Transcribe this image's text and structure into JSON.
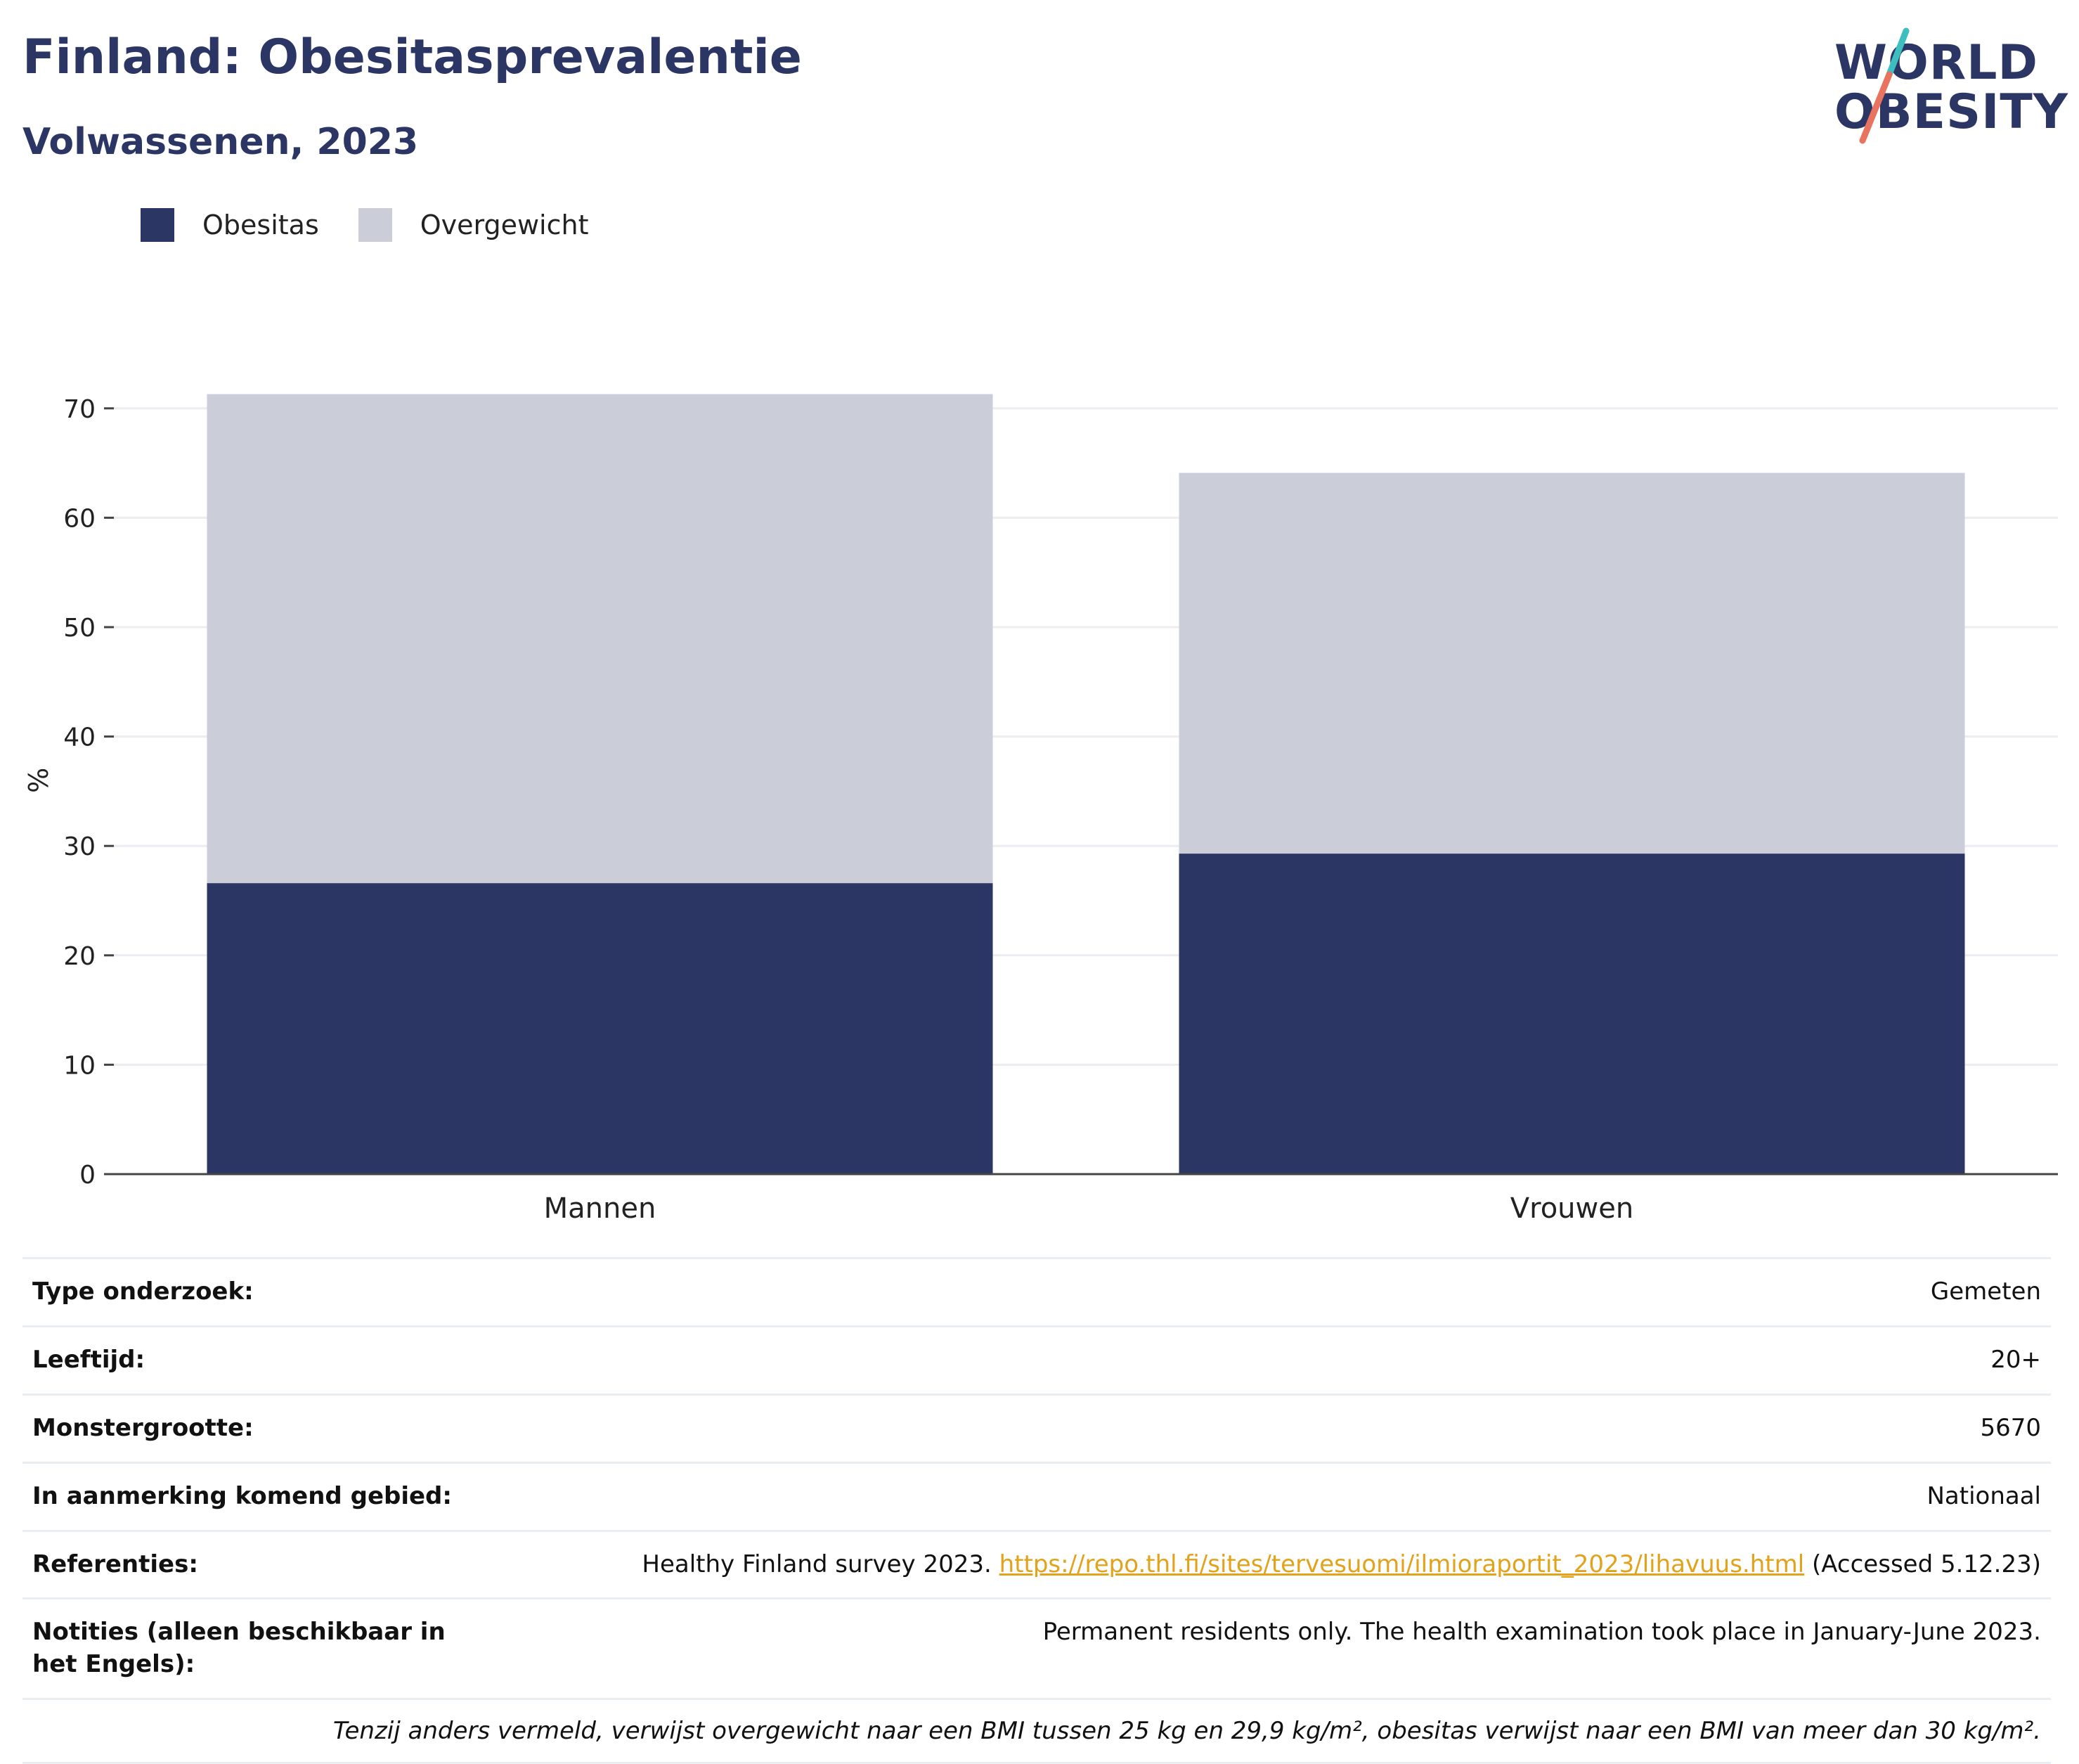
{
  "header": {
    "title": "Finland: Obesitasprevalentie",
    "subtitle": "Volwassenen, 2023"
  },
  "logo": {
    "line1": "WORLD",
    "line2": "OBESITY",
    "icon": "world-obesity-logo"
  },
  "colors": {
    "obesitas": "#2b3664",
    "overgewicht": "#cbcdd8",
    "logo_teal": "#3dbfbf",
    "logo_coral": "#e8735e",
    "link": "#e2a21a"
  },
  "legend": {
    "items": [
      {
        "label": "Obesitas",
        "color": "#2b3664"
      },
      {
        "label": "Overgewicht",
        "color": "#cbcdd8"
      }
    ]
  },
  "chart_data": {
    "type": "bar",
    "stacked": true,
    "categories": [
      "Mannen",
      "Vrouwen"
    ],
    "series": [
      {
        "name": "Obesitas",
        "values": [
          26.6,
          29.3
        ],
        "color": "#2b3664"
      },
      {
        "name": "Overgewicht",
        "values": [
          44.7,
          34.8
        ],
        "color": "#cbcdd8"
      }
    ],
    "ylabel": "%",
    "ylim": [
      0,
      72
    ],
    "yticks": [
      "0",
      "10",
      "20",
      "30",
      "40",
      "50",
      "60",
      "70"
    ],
    "grid": true,
    "legend_position": "top-left"
  },
  "info": {
    "rows": [
      {
        "label": "Type onderzoek:",
        "value": "Gemeten"
      },
      {
        "label": "Leeftijd:",
        "value": "20+"
      },
      {
        "label": "Monstergrootte:",
        "value": "5670"
      },
      {
        "label": "In aanmerking komend gebied:",
        "value": "Nationaal"
      }
    ],
    "references": {
      "label": "Referenties:",
      "text_before": "Healthy Finland survey 2023. ",
      "link": "https://repo.thl.fi/sites/tervesuomi/ilmioraportit_2023/lihavuus.html",
      "text_after": " (Accessed 5.12.23)"
    },
    "notes": {
      "label": "Notities (alleen beschikbaar in het Engels):",
      "value": "Permanent residents only. The health examination took place in January-June 2023."
    },
    "footnote": "Tenzij anders vermeld, verwijst overgewicht naar een BMI tussen 25 kg en 29,9 kg/m², obesitas verwijst naar een BMI van meer dan 30 kg/m²."
  }
}
